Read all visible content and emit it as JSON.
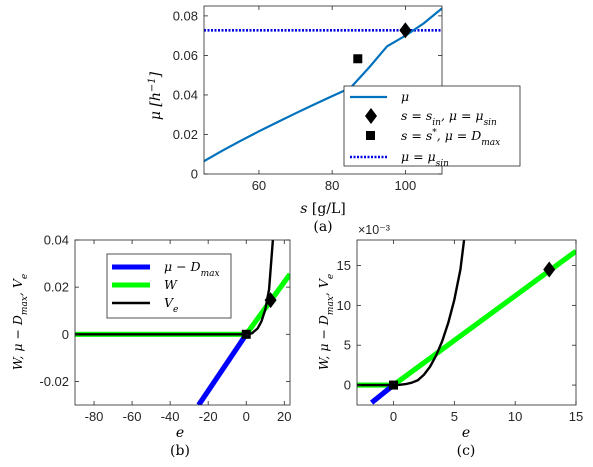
{
  "chart_data": [
    {
      "type": "line",
      "caption": "(a)",
      "xlabel": "s [g/L]",
      "ylabel": "μ [h⁻¹]",
      "xlim": [
        45,
        110
      ],
      "ylim": [
        0,
        0.085
      ],
      "xticks": [
        60,
        80,
        100
      ],
      "yticks": [
        0,
        0.02,
        0.04,
        0.06,
        0.08
      ],
      "xtick_labels": [
        "60",
        "80",
        "100"
      ],
      "ytick_labels": [
        "0",
        "0.02",
        "0.04",
        "0.06",
        "0.08"
      ],
      "legend_position": "bottom-right",
      "series": [
        {
          "name": "μ",
          "kind": "line",
          "color": "#0072BD",
          "x": [
            45,
            50,
            55,
            60,
            65,
            70,
            75,
            80,
            85,
            90,
            95,
            100,
            105,
            110
          ],
          "y": [
            0.0065,
            0.0118,
            0.0168,
            0.0216,
            0.0262,
            0.0307,
            0.0351,
            0.0394,
            0.0436,
            0.0537,
            0.0646,
            0.07,
            0.0762,
            0.0838
          ]
        },
        {
          "name": "s = s_in, μ = μ_sin",
          "kind": "marker",
          "marker": "diamond",
          "x": [
            100
          ],
          "y": [
            0.0727
          ]
        },
        {
          "name": "s = s*, μ = D_max",
          "kind": "marker",
          "marker": "square",
          "x": [
            87
          ],
          "y": [
            0.0583
          ]
        },
        {
          "name": "μ = μ_sin",
          "kind": "hline",
          "color": "#0000E0",
          "y": 0.0727
        }
      ]
    },
    {
      "type": "line",
      "caption": "(b)",
      "xlabel": "e",
      "ylabel": "W, μ − D_max, V_e",
      "xlim": [
        -90,
        23
      ],
      "ylim": [
        -0.03,
        0.04
      ],
      "xticks": [
        -80,
        -60,
        -40,
        -20,
        0,
        20
      ],
      "yticks": [
        -0.02,
        0,
        0.02,
        0.04
      ],
      "xtick_labels": [
        "-80",
        "-60",
        "-40",
        "-20",
        "0",
        "20"
      ],
      "ytick_labels": [
        "-0.02",
        "0",
        "0.02",
        "0.04"
      ],
      "legend_position": "top-center",
      "series": [
        {
          "name": "μ − D_max",
          "kind": "line",
          "color": "#0000FF",
          "x": [
            -25,
            0
          ],
          "y": [
            -0.03,
            0
          ]
        },
        {
          "name": "W",
          "kind": "line",
          "color": "#00FF00",
          "x": [
            -90,
            0,
            23
          ],
          "y": [
            0,
            0,
            0.0255
          ]
        },
        {
          "name": "V_e",
          "kind": "line",
          "color": "#000000",
          "x": [
            -90,
            0,
            3,
            6,
            8,
            10,
            12,
            14
          ],
          "y": [
            0,
            0,
            0.0004,
            0.0025,
            0.0055,
            0.0105,
            0.019,
            0.04
          ]
        },
        {
          "name": "",
          "kind": "marker",
          "marker": "diamond",
          "x": [
            12.8
          ],
          "y": [
            0.0145
          ]
        },
        {
          "name": "",
          "kind": "marker",
          "marker": "square",
          "x": [
            0
          ],
          "y": [
            0
          ]
        }
      ]
    },
    {
      "type": "line",
      "caption": "(c)",
      "xlabel": "e",
      "ylabel": "W, μ − D_max, V_e",
      "exponent_label": "×10⁻³",
      "xlim": [
        -3,
        15
      ],
      "ylim": [
        -0.0025,
        0.0182
      ],
      "xticks": [
        0,
        5,
        10,
        15
      ],
      "yticks": [
        0,
        0.005,
        0.01,
        0.015
      ],
      "xtick_labels": [
        "0",
        "5",
        "10",
        "15"
      ],
      "ytick_labels": [
        "0",
        "5",
        "10",
        "15"
      ],
      "series": [
        {
          "name": "μ − D_max",
          "kind": "line",
          "color": "#0000FF",
          "x": [
            -1.8,
            0
          ],
          "y": [
            -0.0022,
            0
          ]
        },
        {
          "name": "W",
          "kind": "line",
          "color": "#00FF00",
          "x": [
            -3,
            0,
            15
          ],
          "y": [
            0,
            0,
            0.0168
          ]
        },
        {
          "name": "V_e",
          "kind": "line",
          "color": "#000000",
          "x": [
            -3,
            0,
            0.5,
            1,
            1.5,
            2,
            2.5,
            3,
            3.5,
            4,
            4.5,
            5,
            5.5,
            5.8
          ],
          "y": [
            0,
            0,
            3e-05,
            0.00012,
            0.0003,
            0.0006,
            0.0013,
            0.0023,
            0.0037,
            0.0055,
            0.0078,
            0.0107,
            0.0145,
            0.0182
          ]
        },
        {
          "name": "",
          "kind": "marker",
          "marker": "diamond",
          "x": [
            12.8
          ],
          "y": [
            0.0145
          ]
        },
        {
          "name": "",
          "kind": "marker",
          "marker": "square",
          "x": [
            0
          ],
          "y": [
            0
          ]
        }
      ]
    }
  ]
}
